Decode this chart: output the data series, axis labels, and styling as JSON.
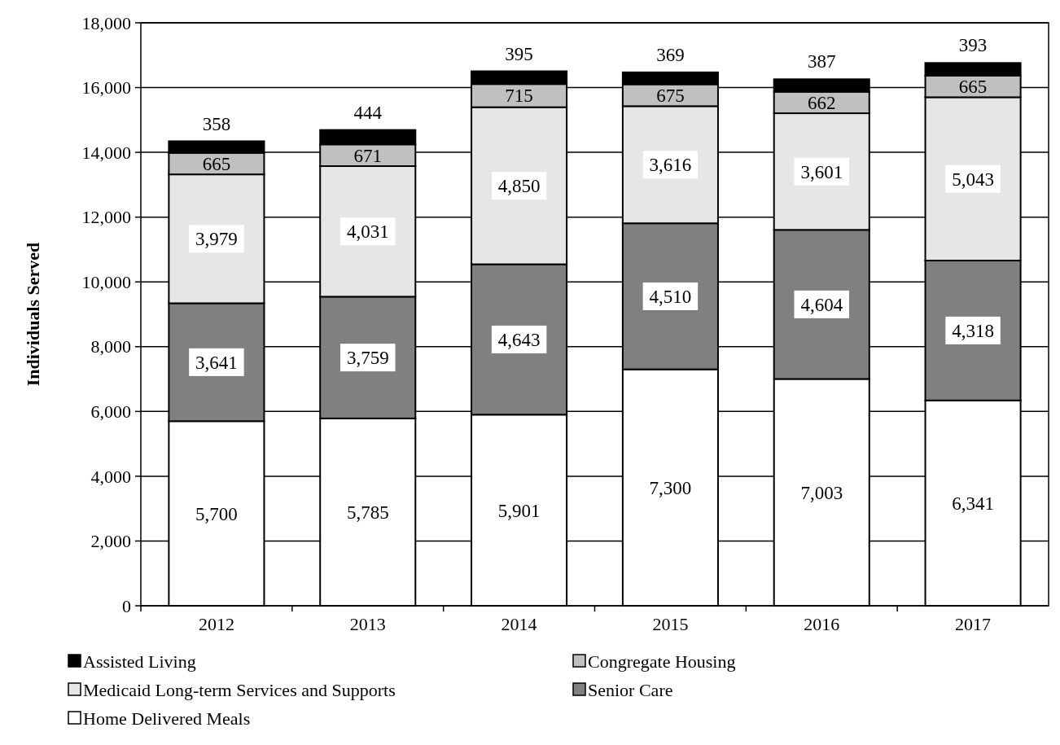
{
  "chart_data": {
    "type": "bar",
    "stacked": true,
    "ylabel": "Individuals Served",
    "categories": [
      "2012",
      "2013",
      "2014",
      "2015",
      "2016",
      "2017"
    ],
    "series": [
      {
        "name": "Home Delivered Meals",
        "color": "#ffffff",
        "values": [
          5700,
          5785,
          5901,
          7300,
          7003,
          6341
        ],
        "value_labels": [
          "5,700",
          "5,785",
          "5,901",
          "7,300",
          "7,003",
          "6,341"
        ]
      },
      {
        "name": "Senior Care",
        "color": "#808080",
        "values": [
          3641,
          3759,
          4643,
          4510,
          4604,
          4318
        ],
        "value_labels": [
          "3,641",
          "3,759",
          "4,643",
          "4,510",
          "4,604",
          "4,318"
        ]
      },
      {
        "name": "Medicaid Long-term Services and Supports",
        "color": "#e6e6e6",
        "values": [
          3979,
          4031,
          4850,
          3616,
          3601,
          5043
        ],
        "value_labels": [
          "3,979",
          "4,031",
          "4,850",
          "3,616",
          "3,601",
          "5,043"
        ]
      },
      {
        "name": "Congregate Housing",
        "color": "#c0c0c0",
        "values": [
          665,
          671,
          715,
          675,
          662,
          665
        ],
        "value_labels": [
          "665",
          "671",
          "715",
          "675",
          "662",
          "665"
        ]
      },
      {
        "name": "Assisted Living",
        "color": "#000000",
        "values": [
          358,
          444,
          395,
          369,
          387,
          393
        ],
        "value_labels": [
          "358",
          "444",
          "395",
          "369",
          "387",
          "393"
        ]
      }
    ],
    "ylim": [
      0,
      18000
    ],
    "yticks": [
      {
        "value": 0,
        "label": "0"
      },
      {
        "value": 2000,
        "label": "2,000"
      },
      {
        "value": 4000,
        "label": "4,000"
      },
      {
        "value": 6000,
        "label": "6,000"
      },
      {
        "value": 8000,
        "label": "8,000"
      },
      {
        "value": 10000,
        "label": "10,000"
      },
      {
        "value": 12000,
        "label": "12,000"
      },
      {
        "value": 14000,
        "label": "14,000"
      },
      {
        "value": 16000,
        "label": "16,000"
      },
      {
        "value": 18000,
        "label": "18,000"
      }
    ],
    "grid": "y",
    "legend": "bottom"
  }
}
